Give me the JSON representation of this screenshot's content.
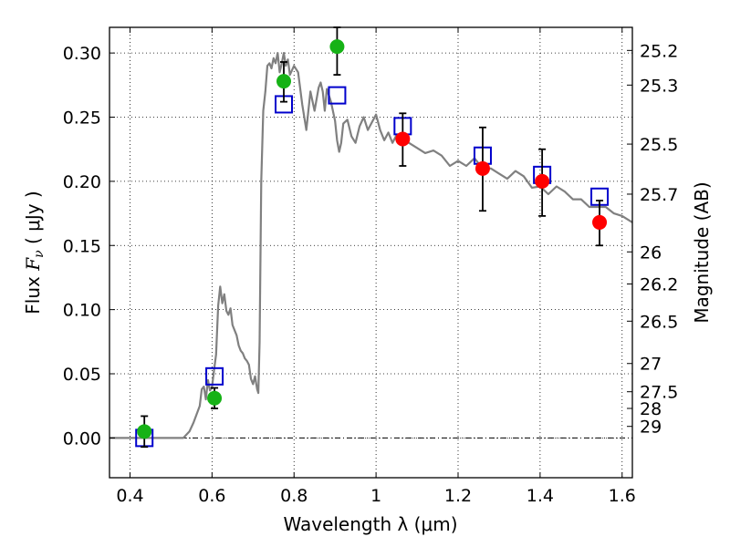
{
  "chart_data": {
    "type": "scatter",
    "title": "",
    "xlabel": "Wavelength  λ (μm)",
    "ylabel": "Flux  F_ν  ( μJy )",
    "ylabel_parts": {
      "prefix": "Flux  ",
      "symbol": "F",
      "subscript": "ν",
      "suffix": "  ( μJy )"
    },
    "y2label": "Magnitude (AB)",
    "xlim": [
      0.35,
      1.625
    ],
    "ylim": [
      -0.031,
      0.32
    ],
    "grid": true,
    "x_ticks": [
      {
        "value": 0.4,
        "label": "0.4"
      },
      {
        "value": 0.6,
        "label": "0.6"
      },
      {
        "value": 0.8,
        "label": "0.8"
      },
      {
        "value": 1.0,
        "label": "1"
      },
      {
        "value": 1.2,
        "label": "1.2"
      },
      {
        "value": 1.4,
        "label": "1.4"
      },
      {
        "value": 1.6,
        "label": "1.6"
      }
    ],
    "y_ticks": [
      {
        "value": 0.0,
        "label": "0.00"
      },
      {
        "value": 0.05,
        "label": "0.05"
      },
      {
        "value": 0.1,
        "label": "0.10"
      },
      {
        "value": 0.15,
        "label": "0.15"
      },
      {
        "value": 0.2,
        "label": "0.20"
      },
      {
        "value": 0.25,
        "label": "0.25"
      },
      {
        "value": 0.3,
        "label": "0.30"
      }
    ],
    "mag_ticks": [
      {
        "label": "25.2",
        "flux": 0.302
      },
      {
        "label": "25.3",
        "flux": 0.275
      },
      {
        "label": "25.5",
        "flux": 0.229
      },
      {
        "label": "25.7",
        "flux": 0.19
      },
      {
        "label": "26",
        "flux": 0.145
      },
      {
        "label": "26.2",
        "flux": 0.12
      },
      {
        "label": "26.5",
        "flux": 0.091
      },
      {
        "label": "27",
        "flux": 0.058
      },
      {
        "label": "27.5",
        "flux": 0.036
      },
      {
        "label": "28",
        "flux": 0.023
      },
      {
        "label": "29",
        "flux": 0.009
      }
    ],
    "series": [
      {
        "kind": "line",
        "color": "#808080",
        "x": [
          0.35,
          0.53,
          0.545,
          0.555,
          0.57,
          0.575,
          0.58,
          0.585,
          0.59,
          0.595,
          0.6,
          0.605,
          0.61,
          0.615,
          0.62,
          0.625,
          0.63,
          0.635,
          0.64,
          0.645,
          0.65,
          0.66,
          0.665,
          0.67,
          0.675,
          0.68,
          0.685,
          0.69,
          0.695,
          0.7,
          0.705,
          0.71,
          0.713,
          0.716,
          0.72,
          0.725,
          0.73,
          0.735,
          0.74,
          0.745,
          0.75,
          0.755,
          0.76,
          0.765,
          0.77,
          0.775,
          0.78,
          0.785,
          0.79,
          0.8,
          0.81,
          0.82,
          0.83,
          0.84,
          0.85,
          0.86,
          0.865,
          0.87,
          0.875,
          0.88,
          0.89,
          0.9,
          0.905,
          0.91,
          0.915,
          0.92,
          0.93,
          0.94,
          0.95,
          0.96,
          0.97,
          0.98,
          0.99,
          1.0,
          1.01,
          1.02,
          1.03,
          1.04,
          1.05,
          1.06,
          1.08,
          1.1,
          1.12,
          1.14,
          1.16,
          1.18,
          1.2,
          1.22,
          1.24,
          1.26,
          1.28,
          1.3,
          1.32,
          1.34,
          1.36,
          1.38,
          1.4,
          1.42,
          1.44,
          1.46,
          1.48,
          1.5,
          1.52,
          1.54,
          1.56,
          1.58,
          1.6,
          1.625
        ],
        "y": [
          0.0,
          0.0,
          0.005,
          0.012,
          0.025,
          0.038,
          0.04,
          0.03,
          0.045,
          0.037,
          0.04,
          0.053,
          0.065,
          0.103,
          0.118,
          0.105,
          0.112,
          0.099,
          0.096,
          0.101,
          0.088,
          0.08,
          0.072,
          0.068,
          0.066,
          0.062,
          0.06,
          0.057,
          0.046,
          0.042,
          0.048,
          0.038,
          0.035,
          0.075,
          0.2,
          0.255,
          0.27,
          0.29,
          0.292,
          0.288,
          0.296,
          0.292,
          0.3,
          0.285,
          0.292,
          0.3,
          0.29,
          0.295,
          0.283,
          0.29,
          0.285,
          0.26,
          0.24,
          0.27,
          0.255,
          0.273,
          0.277,
          0.27,
          0.255,
          0.272,
          0.262,
          0.247,
          0.232,
          0.223,
          0.23,
          0.245,
          0.248,
          0.235,
          0.23,
          0.243,
          0.25,
          0.24,
          0.246,
          0.252,
          0.24,
          0.232,
          0.238,
          0.23,
          0.236,
          0.232,
          0.23,
          0.226,
          0.222,
          0.224,
          0.22,
          0.212,
          0.216,
          0.212,
          0.218,
          0.21,
          0.21,
          0.206,
          0.202,
          0.208,
          0.204,
          0.195,
          0.196,
          0.19,
          0.196,
          0.192,
          0.186,
          0.186,
          0.18,
          0.18,
          0.18,
          0.175,
          0.173,
          0.168
        ]
      },
      {
        "kind": "scatter-errorbar",
        "marker": "circle",
        "color": "#16b216",
        "points": [
          {
            "x": 0.435,
            "y": 0.005,
            "lo": -0.007,
            "hi": 0.017
          },
          {
            "x": 0.606,
            "y": 0.031,
            "lo": 0.023,
            "hi": 0.039
          },
          {
            "x": 0.775,
            "y": 0.278,
            "lo": 0.262,
            "hi": 0.293
          },
          {
            "x": 0.905,
            "y": 0.305,
            "lo": 0.283,
            "hi": 0.32
          }
        ]
      },
      {
        "kind": "scatter-errorbar",
        "marker": "circle",
        "color": "#ff0000",
        "points": [
          {
            "x": 1.065,
            "y": 0.233,
            "lo": 0.212,
            "hi": 0.253
          },
          {
            "x": 1.26,
            "y": 0.21,
            "lo": 0.177,
            "hi": 0.242
          },
          {
            "x": 1.405,
            "y": 0.2,
            "lo": 0.173,
            "hi": 0.225
          },
          {
            "x": 1.545,
            "y": 0.168,
            "lo": 0.15,
            "hi": 0.185
          }
        ]
      },
      {
        "kind": "scatter",
        "marker": "open-square",
        "color": "#0000cc",
        "points": [
          {
            "x": 0.435,
            "y": 0.0
          },
          {
            "x": 0.606,
            "y": 0.048
          },
          {
            "x": 0.775,
            "y": 0.26
          },
          {
            "x": 0.905,
            "y": 0.267
          },
          {
            "x": 1.065,
            "y": 0.243
          },
          {
            "x": 1.26,
            "y": 0.22
          },
          {
            "x": 1.405,
            "y": 0.205
          },
          {
            "x": 1.545,
            "y": 0.188
          }
        ]
      }
    ]
  }
}
